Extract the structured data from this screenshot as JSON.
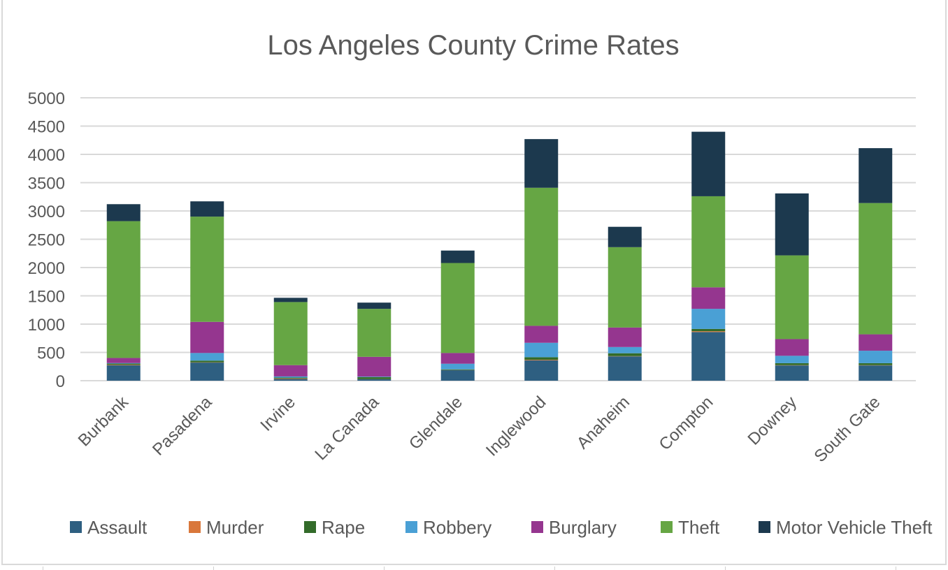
{
  "chart_data": {
    "type": "bar",
    "stacked": true,
    "title": "Los Angeles County Crime Rates",
    "xlabel": "",
    "ylabel": "",
    "ylim": [
      0,
      5000
    ],
    "yticks": [
      0,
      500,
      1000,
      1500,
      2000,
      2500,
      3000,
      3500,
      4000,
      4500,
      5000
    ],
    "ytick_labels": [
      "0",
      "500",
      "1000",
      "1500",
      "2000",
      "2500",
      "3000",
      "3500",
      "4000",
      "4500",
      "5000"
    ],
    "grid": true,
    "legend_position": "bottom",
    "categories": [
      "Burbank",
      "Pasadena",
      "Irvine",
      "La Canada",
      "Glendale",
      "Inglewood",
      "Anaheim",
      "Compton",
      "Downey",
      "South Gate"
    ],
    "series": [
      {
        "name": "Assault",
        "color": "#2e5f81",
        "values": [
          272,
          320,
          30,
          25,
          185,
          360,
          430,
          860,
          270,
          270
        ]
      },
      {
        "name": "Murder",
        "color": "#d9773b",
        "values": [
          10,
          5,
          10,
          2,
          3,
          10,
          5,
          15,
          5,
          5
        ]
      },
      {
        "name": "Rape",
        "color": "#336b2a",
        "values": [
          20,
          30,
          15,
          35,
          12,
          45,
          50,
          40,
          35,
          35
        ]
      },
      {
        "name": "Robbery",
        "color": "#4aa0d5",
        "values": [
          10,
          135,
          20,
          10,
          100,
          255,
          110,
          355,
          130,
          220
        ]
      },
      {
        "name": "Burglary",
        "color": "#95368f",
        "values": [
          90,
          550,
          200,
          350,
          190,
          300,
          345,
          380,
          295,
          290
        ]
      },
      {
        "name": "Theft",
        "color": "#66a644",
        "values": [
          2418,
          1860,
          1115,
          848,
          1590,
          2440,
          1420,
          1610,
          1480,
          2320
        ]
      },
      {
        "name": "Motor Vehicle Theft",
        "color": "#1c394e",
        "values": [
          300,
          270,
          75,
          110,
          220,
          860,
          360,
          1140,
          1095,
          970
        ]
      }
    ]
  }
}
